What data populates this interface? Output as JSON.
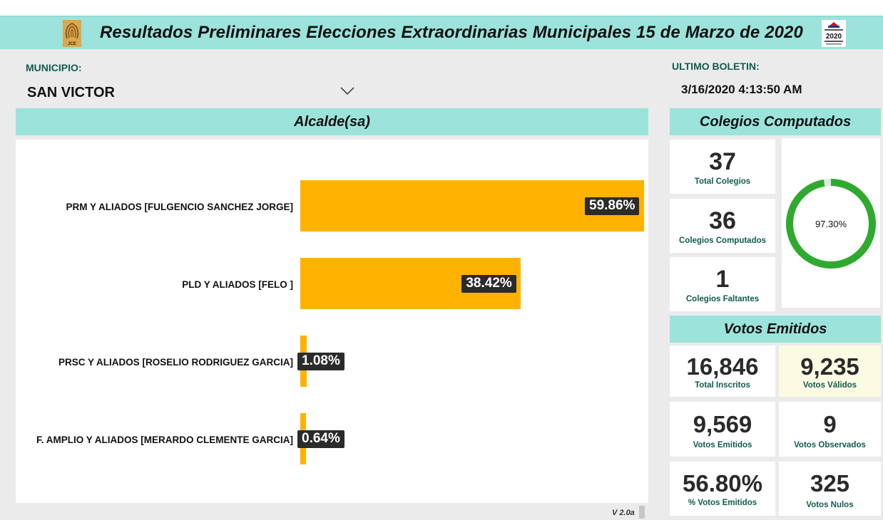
{
  "header": {
    "title": "Resultados Preliminares Elecciones Extraordinarias Municipales 15 de Marzo de 2020",
    "logo_left": "JCE",
    "logo_right": "2020"
  },
  "municipio": {
    "label": "MUNICIPIO:",
    "value": "SAN VICTOR"
  },
  "boletin": {
    "label": "ULTIMO BOLETIN:",
    "value": "3/16/2020 4:13:50 AM"
  },
  "alcalde": {
    "title": "Alcalde(sa)"
  },
  "chart_data": {
    "type": "bar",
    "orientation": "horizontal",
    "title": "Alcalde(sa)",
    "categories": [
      "PRM Y ALIADOS [FULGENCIO SANCHEZ JORGE]",
      "PLD Y ALIADOS [FELO ]",
      "PRSC Y ALIADOS [ROSELIO RODRIGUEZ GARCIA]",
      "F. AMPLIO Y ALIADOS [MERARDO CLEMENTE GARCIA]"
    ],
    "values": [
      59.86,
      38.42,
      1.08,
      0.64
    ],
    "value_labels": [
      "59.86%",
      "38.42%",
      "1.08%",
      "0.64%"
    ],
    "bar_color": "#ffb300",
    "xlim": [
      0,
      59.86
    ]
  },
  "colegios": {
    "title": "Colegios Computados",
    "total": {
      "value": "37",
      "label": "Total Colegios"
    },
    "computados": {
      "value": "36",
      "label": "Colegios Computados"
    },
    "faltantes": {
      "value": "1",
      "label": "Colegios Faltantes"
    },
    "donut_percent": 97.3,
    "donut_label": "97.30%",
    "donut_color": "#2eaa2e"
  },
  "votos": {
    "title": "Votos Emitidos",
    "inscritos": {
      "value": "16,846",
      "label": "Total Inscritos"
    },
    "validos": {
      "value": "9,235",
      "label": "Votos Válidos"
    },
    "emitidos": {
      "value": "9,569",
      "label": "Votos Emitidos"
    },
    "observados": {
      "value": "9",
      "label": "Votos Observados"
    },
    "pct_emitidos": {
      "value": "56.80%",
      "label": "% Votos Emitidos"
    },
    "nulos": {
      "value": "325",
      "label": "Votos Nulos"
    }
  },
  "version": "V 2.0a"
}
